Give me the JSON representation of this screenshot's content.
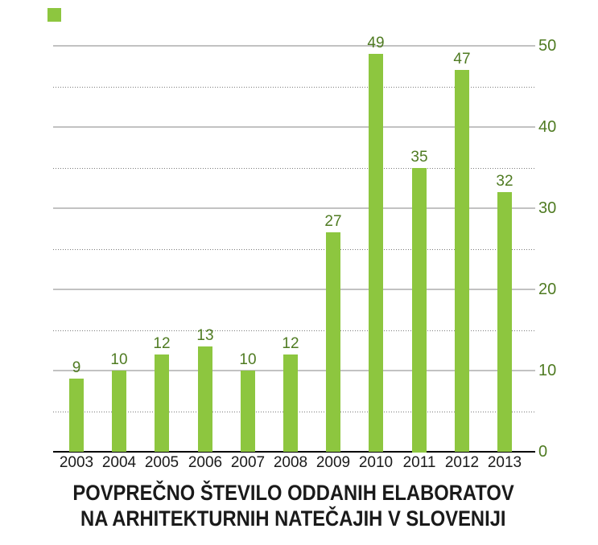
{
  "chart_data": {
    "type": "bar",
    "title_lines": [
      "POVPREČNO ŠTEVILO ODDANIH ELABORATOV",
      "NA ARHITEKTURNIH NATEČAJIH V SLOVENIJI"
    ],
    "categories": [
      "2003",
      "2004",
      "2005",
      "2006",
      "2007",
      "2008",
      "2009",
      "2010",
      "2011",
      "2012",
      "2013"
    ],
    "values": [
      9,
      10,
      12,
      13,
      10,
      12,
      27,
      49,
      35,
      47,
      32
    ],
    "ylim": [
      0,
      50
    ],
    "y_ticks_major": [
      0,
      10,
      20,
      30,
      40,
      50
    ],
    "y_ticks_minor": [
      5,
      15,
      25,
      35,
      45
    ],
    "grid": "major solid, minor dotted, ticks labeled on right side",
    "legend_position": "top-left swatch (no text)",
    "colors": {
      "bar": "#8dc63f",
      "value_label": "#4f7b22",
      "tick_label": "#4f7b22",
      "year_label": "#1a1a1a",
      "grid_major": "#c2c2c2",
      "grid_minor": "#7a7a7a",
      "baseline": "#000000",
      "title": "#1a1a1a"
    }
  }
}
